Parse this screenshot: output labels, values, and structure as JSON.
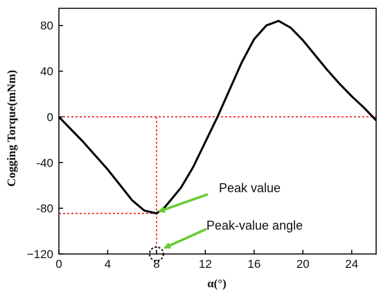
{
  "chart_data": {
    "type": "line",
    "xlabel": "α(°)",
    "ylabel": "Cogging Torque(mNm)",
    "xlim": [
      0,
      26
    ],
    "ylim": [
      -120,
      95
    ],
    "xticks": [
      0,
      4,
      8,
      12,
      16,
      20,
      24
    ],
    "yticks": [
      -120,
      -80,
      -40,
      0,
      40,
      80
    ],
    "ytick_labels": [
      "−120",
      "-80",
      "-40",
      "0",
      "40",
      "80"
    ],
    "grid": false,
    "series": [
      {
        "color": "#000000",
        "x": [
          0,
          2,
          4,
          6,
          7,
          8,
          8.6,
          9,
          10,
          11,
          12,
          13,
          14,
          15,
          16,
          17,
          18,
          19,
          20,
          21,
          22,
          23,
          24,
          25,
          26
        ],
        "y": [
          0,
          -22,
          -46,
          -73,
          -82,
          -84.5,
          -80,
          -75,
          -62,
          -44,
          -22,
          0,
          24,
          48,
          68,
          80,
          84,
          78,
          67,
          54,
          41,
          29,
          18,
          8,
          -3
        ]
      }
    ],
    "reference_lines": {
      "color": "#ff0000",
      "horizontal_y": 0,
      "vertical_x": 8
    },
    "annotations": [
      {
        "text": "Peak value",
        "point": [
          8,
          -84.5
        ],
        "arrow_color": "#66cc33"
      },
      {
        "text": "Peak-value angle",
        "point": [
          8,
          -120
        ],
        "arrow_color": "#66cc33"
      }
    ],
    "marker_circle": {
      "x": 8,
      "y": -120,
      "style": "dashed"
    }
  }
}
